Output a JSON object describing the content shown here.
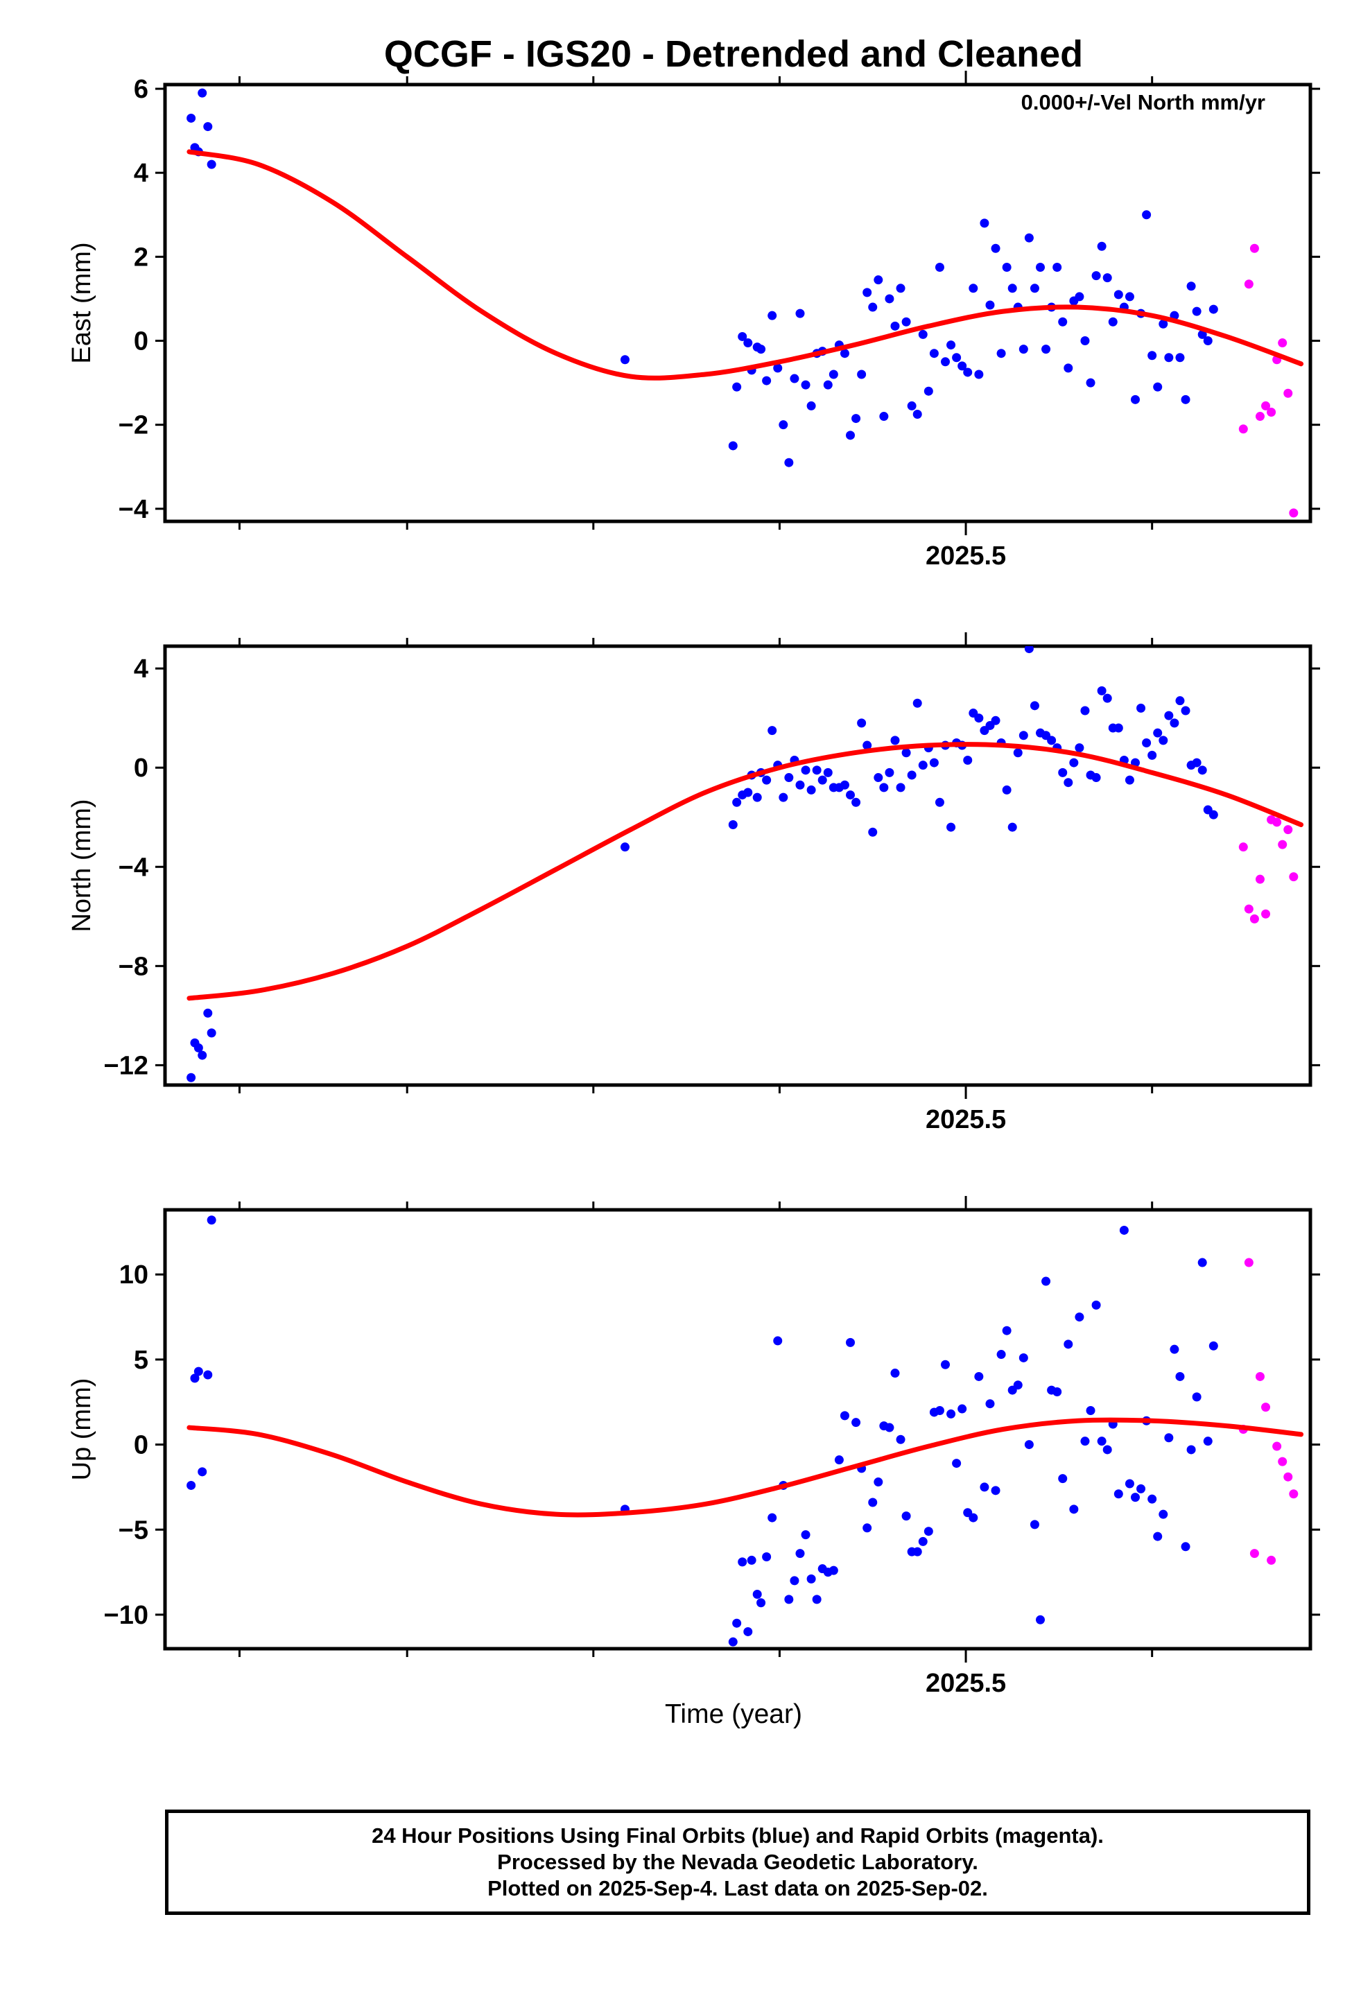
{
  "chart_data": {
    "type": "scatter",
    "title": "QCGF - IGS20 - Detrended and Cleaned",
    "annotation": "0.000+/-Vel North mm/yr",
    "xlabel": "Time (year)",
    "xlim": [
      2025.07,
      2025.685
    ],
    "x_tick_label": "2025.5",
    "colors": {
      "final": "#0000ff",
      "rapid": "#ff00ff",
      "fit": "#ff0000"
    },
    "panels": [
      {
        "name": "east",
        "ylabel": "East (mm)",
        "ylim": [
          -4.3,
          6.1
        ],
        "yticks": [
          6,
          4,
          2,
          0,
          -2,
          -4
        ],
        "ytick_labels": [
          "6",
          "4",
          "2",
          "0",
          "−2",
          "−4"
        ],
        "fit": {
          "x": [
            2025.083,
            2025.12,
            2025.16,
            2025.2,
            2025.24,
            2025.28,
            2025.32,
            2025.36,
            2025.4,
            2025.44,
            2025.48,
            2025.52,
            2025.56,
            2025.6,
            2025.64,
            2025.68
          ],
          "y": [
            4.5,
            4.2,
            3.3,
            2.0,
            0.7,
            -0.3,
            -0.85,
            -0.8,
            -0.5,
            -0.1,
            0.35,
            0.7,
            0.8,
            0.6,
            0.1,
            -0.55
          ]
        },
        "final": {
          "x": [
            2025.084,
            2025.086,
            2025.088,
            2025.09,
            2025.093,
            2025.095,
            2025.317,
            2025.375,
            2025.377,
            2025.38,
            2025.383,
            2025.385,
            2025.388,
            2025.39,
            2025.393,
            2025.396,
            2025.399,
            2025.402,
            2025.405,
            2025.408,
            2025.411,
            2025.414,
            2025.417,
            2025.42,
            2025.423,
            2025.426,
            2025.429,
            2025.432,
            2025.435,
            2025.438,
            2025.441,
            2025.444,
            2025.447,
            2025.45,
            2025.453,
            2025.456,
            2025.459,
            2025.462,
            2025.465,
            2025.468,
            2025.471,
            2025.474,
            2025.477,
            2025.48,
            2025.483,
            2025.486,
            2025.489,
            2025.492,
            2025.495,
            2025.498,
            2025.501,
            2025.504,
            2025.507,
            2025.51,
            2025.513,
            2025.516,
            2025.519,
            2025.522,
            2025.525,
            2025.528,
            2025.531,
            2025.534,
            2025.537,
            2025.54,
            2025.543,
            2025.546,
            2025.549,
            2025.552,
            2025.555,
            2025.558,
            2025.561,
            2025.564,
            2025.567,
            2025.57,
            2025.573,
            2025.576,
            2025.579,
            2025.582,
            2025.585,
            2025.588,
            2025.591,
            2025.594,
            2025.597,
            2025.6,
            2025.603,
            2025.606,
            2025.609,
            2025.612,
            2025.615,
            2025.618,
            2025.621,
            2025.624,
            2025.627,
            2025.63,
            2025.633
          ],
          "y": [
            5.3,
            4.6,
            4.5,
            5.9,
            5.1,
            4.2,
            -0.45,
            -2.5,
            -1.1,
            0.1,
            -0.05,
            -0.7,
            -0.15,
            -0.2,
            -0.95,
            0.6,
            -0.65,
            -2.0,
            -2.9,
            -0.9,
            0.65,
            -1.05,
            -1.55,
            -0.3,
            -0.25,
            -1.05,
            -0.8,
            -0.1,
            -0.3,
            -2.25,
            -1.85,
            -0.8,
            1.15,
            0.8,
            1.45,
            -1.8,
            1.0,
            0.35,
            1.25,
            0.45,
            -1.55,
            -1.75,
            0.15,
            -1.2,
            -0.3,
            1.75,
            -0.5,
            -0.1,
            -0.4,
            -0.6,
            -0.75,
            1.25,
            -0.8,
            2.8,
            0.85,
            2.2,
            -0.3,
            1.75,
            1.25,
            0.8,
            -0.2,
            2.45,
            1.25,
            1.75,
            -0.2,
            0.8,
            1.75,
            0.45,
            -0.65,
            0.95,
            1.05,
            0.0,
            -1.0,
            1.55,
            2.25,
            1.5,
            0.45,
            1.1,
            0.8,
            1.05,
            -1.4,
            0.65,
            3.0,
            -0.35,
            -1.1,
            0.4,
            -0.4,
            0.6,
            -0.4,
            -1.4,
            1.3,
            0.7,
            0.15,
            0.0,
            0.75
          ]
        },
        "rapid": {
          "x": [
            2025.649,
            2025.652,
            2025.655,
            2025.658,
            2025.661,
            2025.664,
            2025.667,
            2025.67,
            2025.673,
            2025.676
          ],
          "y": [
            -2.1,
            1.35,
            2.2,
            -1.8,
            -1.55,
            -1.7,
            -0.45,
            -0.05,
            -1.25,
            -4.1
          ]
        }
      },
      {
        "name": "north",
        "ylabel": "North (mm)",
        "ylim": [
          -12.8,
          4.9
        ],
        "yticks": [
          4,
          0,
          -4,
          -8,
          -12
        ],
        "ytick_labels": [
          "4",
          "0",
          "−4",
          "−8",
          "−12"
        ],
        "fit": {
          "x": [
            2025.083,
            2025.12,
            2025.16,
            2025.2,
            2025.24,
            2025.28,
            2025.32,
            2025.36,
            2025.4,
            2025.44,
            2025.48,
            2025.52,
            2025.56,
            2025.6,
            2025.64,
            2025.68
          ],
          "y": [
            -9.3,
            -9.0,
            -8.3,
            -7.2,
            -5.7,
            -4.1,
            -2.5,
            -1.0,
            0.0,
            0.6,
            0.9,
            0.9,
            0.55,
            -0.2,
            -1.1,
            -2.3
          ]
        },
        "final": {
          "x": [
            2025.084,
            2025.086,
            2025.088,
            2025.09,
            2025.093,
            2025.095,
            2025.317,
            2025.375,
            2025.377,
            2025.38,
            2025.383,
            2025.385,
            2025.388,
            2025.39,
            2025.393,
            2025.396,
            2025.399,
            2025.402,
            2025.405,
            2025.408,
            2025.411,
            2025.414,
            2025.417,
            2025.42,
            2025.423,
            2025.426,
            2025.429,
            2025.432,
            2025.435,
            2025.438,
            2025.441,
            2025.444,
            2025.447,
            2025.45,
            2025.453,
            2025.456,
            2025.459,
            2025.462,
            2025.465,
            2025.468,
            2025.471,
            2025.474,
            2025.477,
            2025.48,
            2025.483,
            2025.486,
            2025.489,
            2025.492,
            2025.495,
            2025.498,
            2025.501,
            2025.504,
            2025.507,
            2025.51,
            2025.513,
            2025.516,
            2025.519,
            2025.522,
            2025.525,
            2025.528,
            2025.531,
            2025.534,
            2025.537,
            2025.54,
            2025.543,
            2025.546,
            2025.549,
            2025.552,
            2025.555,
            2025.558,
            2025.561,
            2025.564,
            2025.567,
            2025.57,
            2025.573,
            2025.576,
            2025.579,
            2025.582,
            2025.585,
            2025.588,
            2025.591,
            2025.594,
            2025.597,
            2025.6,
            2025.603,
            2025.606,
            2025.609,
            2025.612,
            2025.615,
            2025.618,
            2025.621,
            2025.624,
            2025.627,
            2025.63,
            2025.633
          ],
          "y": [
            -12.5,
            -11.1,
            -11.3,
            -11.6,
            -9.9,
            -10.7,
            -3.2,
            -2.3,
            -1.4,
            -1.1,
            -1.0,
            -0.3,
            -1.2,
            -0.2,
            -0.5,
            1.5,
            0.1,
            -1.2,
            -0.4,
            0.3,
            -0.7,
            -0.1,
            -0.9,
            -0.1,
            -0.5,
            -0.2,
            -0.8,
            -0.8,
            -0.7,
            -1.1,
            -1.4,
            1.8,
            0.9,
            -2.6,
            -0.4,
            -0.8,
            -0.2,
            1.1,
            -0.8,
            0.6,
            -0.3,
            2.6,
            0.1,
            0.8,
            0.2,
            -1.4,
            0.9,
            -2.4,
            1.0,
            0.9,
            0.3,
            2.2,
            2.0,
            1.5,
            1.7,
            1.9,
            1.0,
            -0.9,
            -2.4,
            0.6,
            1.3,
            4.8,
            2.5,
            1.4,
            1.3,
            1.1,
            0.8,
            -0.2,
            -0.6,
            0.2,
            0.8,
            2.3,
            -0.3,
            -0.4,
            3.1,
            2.8,
            1.6,
            1.6,
            0.3,
            -0.5,
            0.2,
            2.4,
            1.0,
            0.5,
            1.4,
            1.1,
            2.1,
            1.8,
            2.7,
            2.3,
            0.1,
            0.2,
            -0.1,
            -1.7,
            -1.9
          ]
        },
        "rapid": {
          "x": [
            2025.649,
            2025.652,
            2025.655,
            2025.658,
            2025.661,
            2025.664,
            2025.667,
            2025.67,
            2025.673,
            2025.676
          ],
          "y": [
            -3.2,
            -5.7,
            -6.1,
            -4.5,
            -5.9,
            -2.1,
            -2.2,
            -3.1,
            -2.5,
            -4.4
          ]
        }
      },
      {
        "name": "up",
        "ylabel": "Up (mm)",
        "ylim": [
          -12.0,
          13.8
        ],
        "yticks": [
          10,
          5,
          0,
          -5,
          -10
        ],
        "ytick_labels": [
          "10",
          "5",
          "0",
          "−5",
          "−10"
        ],
        "fit": {
          "x": [
            2025.083,
            2025.12,
            2025.16,
            2025.2,
            2025.24,
            2025.28,
            2025.32,
            2025.36,
            2025.4,
            2025.44,
            2025.48,
            2025.52,
            2025.56,
            2025.6,
            2025.64,
            2025.68
          ],
          "y": [
            1.0,
            0.6,
            -0.6,
            -2.2,
            -3.5,
            -4.1,
            -4.0,
            -3.5,
            -2.5,
            -1.3,
            -0.1,
            0.9,
            1.4,
            1.4,
            1.1,
            0.6
          ]
        },
        "final": {
          "x": [
            2025.084,
            2025.086,
            2025.088,
            2025.09,
            2025.093,
            2025.095,
            2025.317,
            2025.375,
            2025.377,
            2025.38,
            2025.383,
            2025.385,
            2025.388,
            2025.39,
            2025.393,
            2025.396,
            2025.399,
            2025.402,
            2025.405,
            2025.408,
            2025.411,
            2025.414,
            2025.417,
            2025.42,
            2025.423,
            2025.426,
            2025.429,
            2025.432,
            2025.435,
            2025.438,
            2025.441,
            2025.444,
            2025.447,
            2025.45,
            2025.453,
            2025.456,
            2025.459,
            2025.462,
            2025.465,
            2025.468,
            2025.471,
            2025.474,
            2025.477,
            2025.48,
            2025.483,
            2025.486,
            2025.489,
            2025.492,
            2025.495,
            2025.498,
            2025.501,
            2025.504,
            2025.507,
            2025.51,
            2025.513,
            2025.516,
            2025.519,
            2025.522,
            2025.525,
            2025.528,
            2025.531,
            2025.534,
            2025.537,
            2025.54,
            2025.543,
            2025.546,
            2025.549,
            2025.552,
            2025.555,
            2025.558,
            2025.561,
            2025.564,
            2025.567,
            2025.57,
            2025.573,
            2025.576,
            2025.579,
            2025.582,
            2025.585,
            2025.588,
            2025.591,
            2025.594,
            2025.597,
            2025.6,
            2025.603,
            2025.606,
            2025.609,
            2025.612,
            2025.615,
            2025.618,
            2025.621,
            2025.624,
            2025.627,
            2025.63,
            2025.633
          ],
          "y": [
            -2.4,
            3.9,
            4.3,
            -1.6,
            4.1,
            13.2,
            -3.8,
            -11.6,
            -10.5,
            -6.9,
            -11.0,
            -6.8,
            -8.8,
            -9.3,
            -6.6,
            -4.3,
            6.1,
            -2.4,
            -9.1,
            -8.0,
            -6.4,
            -5.3,
            -7.9,
            -9.1,
            -7.3,
            -7.5,
            -7.4,
            -0.9,
            1.7,
            6.0,
            1.3,
            -1.4,
            -4.9,
            -3.4,
            -2.2,
            1.1,
            1.0,
            4.2,
            0.3,
            -4.2,
            -6.3,
            -6.3,
            -5.7,
            -5.1,
            1.9,
            2.0,
            4.7,
            1.8,
            -1.1,
            2.1,
            -4.0,
            -4.3,
            4.0,
            -2.5,
            2.4,
            -2.7,
            5.3,
            6.7,
            3.2,
            3.5,
            5.1,
            0.0,
            -4.7,
            -10.3,
            9.6,
            3.2,
            3.1,
            -2.0,
            5.9,
            -3.8,
            7.5,
            0.2,
            2.0,
            8.2,
            0.2,
            -0.3,
            1.2,
            -2.9,
            12.6,
            -2.3,
            -3.1,
            -2.6,
            1.4,
            -3.2,
            -5.4,
            -4.1,
            0.4,
            5.6,
            4.0,
            -6.0,
            -0.3,
            2.8,
            10.7,
            0.2,
            5.8
          ]
        },
        "rapid": {
          "x": [
            2025.649,
            2025.652,
            2025.655,
            2025.658,
            2025.661,
            2025.664,
            2025.667,
            2025.67,
            2025.673,
            2025.676
          ],
          "y": [
            0.9,
            10.7,
            -6.4,
            4.0,
            2.2,
            -6.8,
            -0.1,
            -1.0,
            -1.9,
            -2.9
          ]
        }
      }
    ]
  },
  "footer": {
    "line1": "24 Hour Positions Using Final Orbits (blue) and Rapid Orbits (magenta).",
    "line2": "Processed by the Nevada Geodetic Laboratory.",
    "line3": "Plotted on 2025-Sep-4. Last data on 2025-Sep-02."
  }
}
